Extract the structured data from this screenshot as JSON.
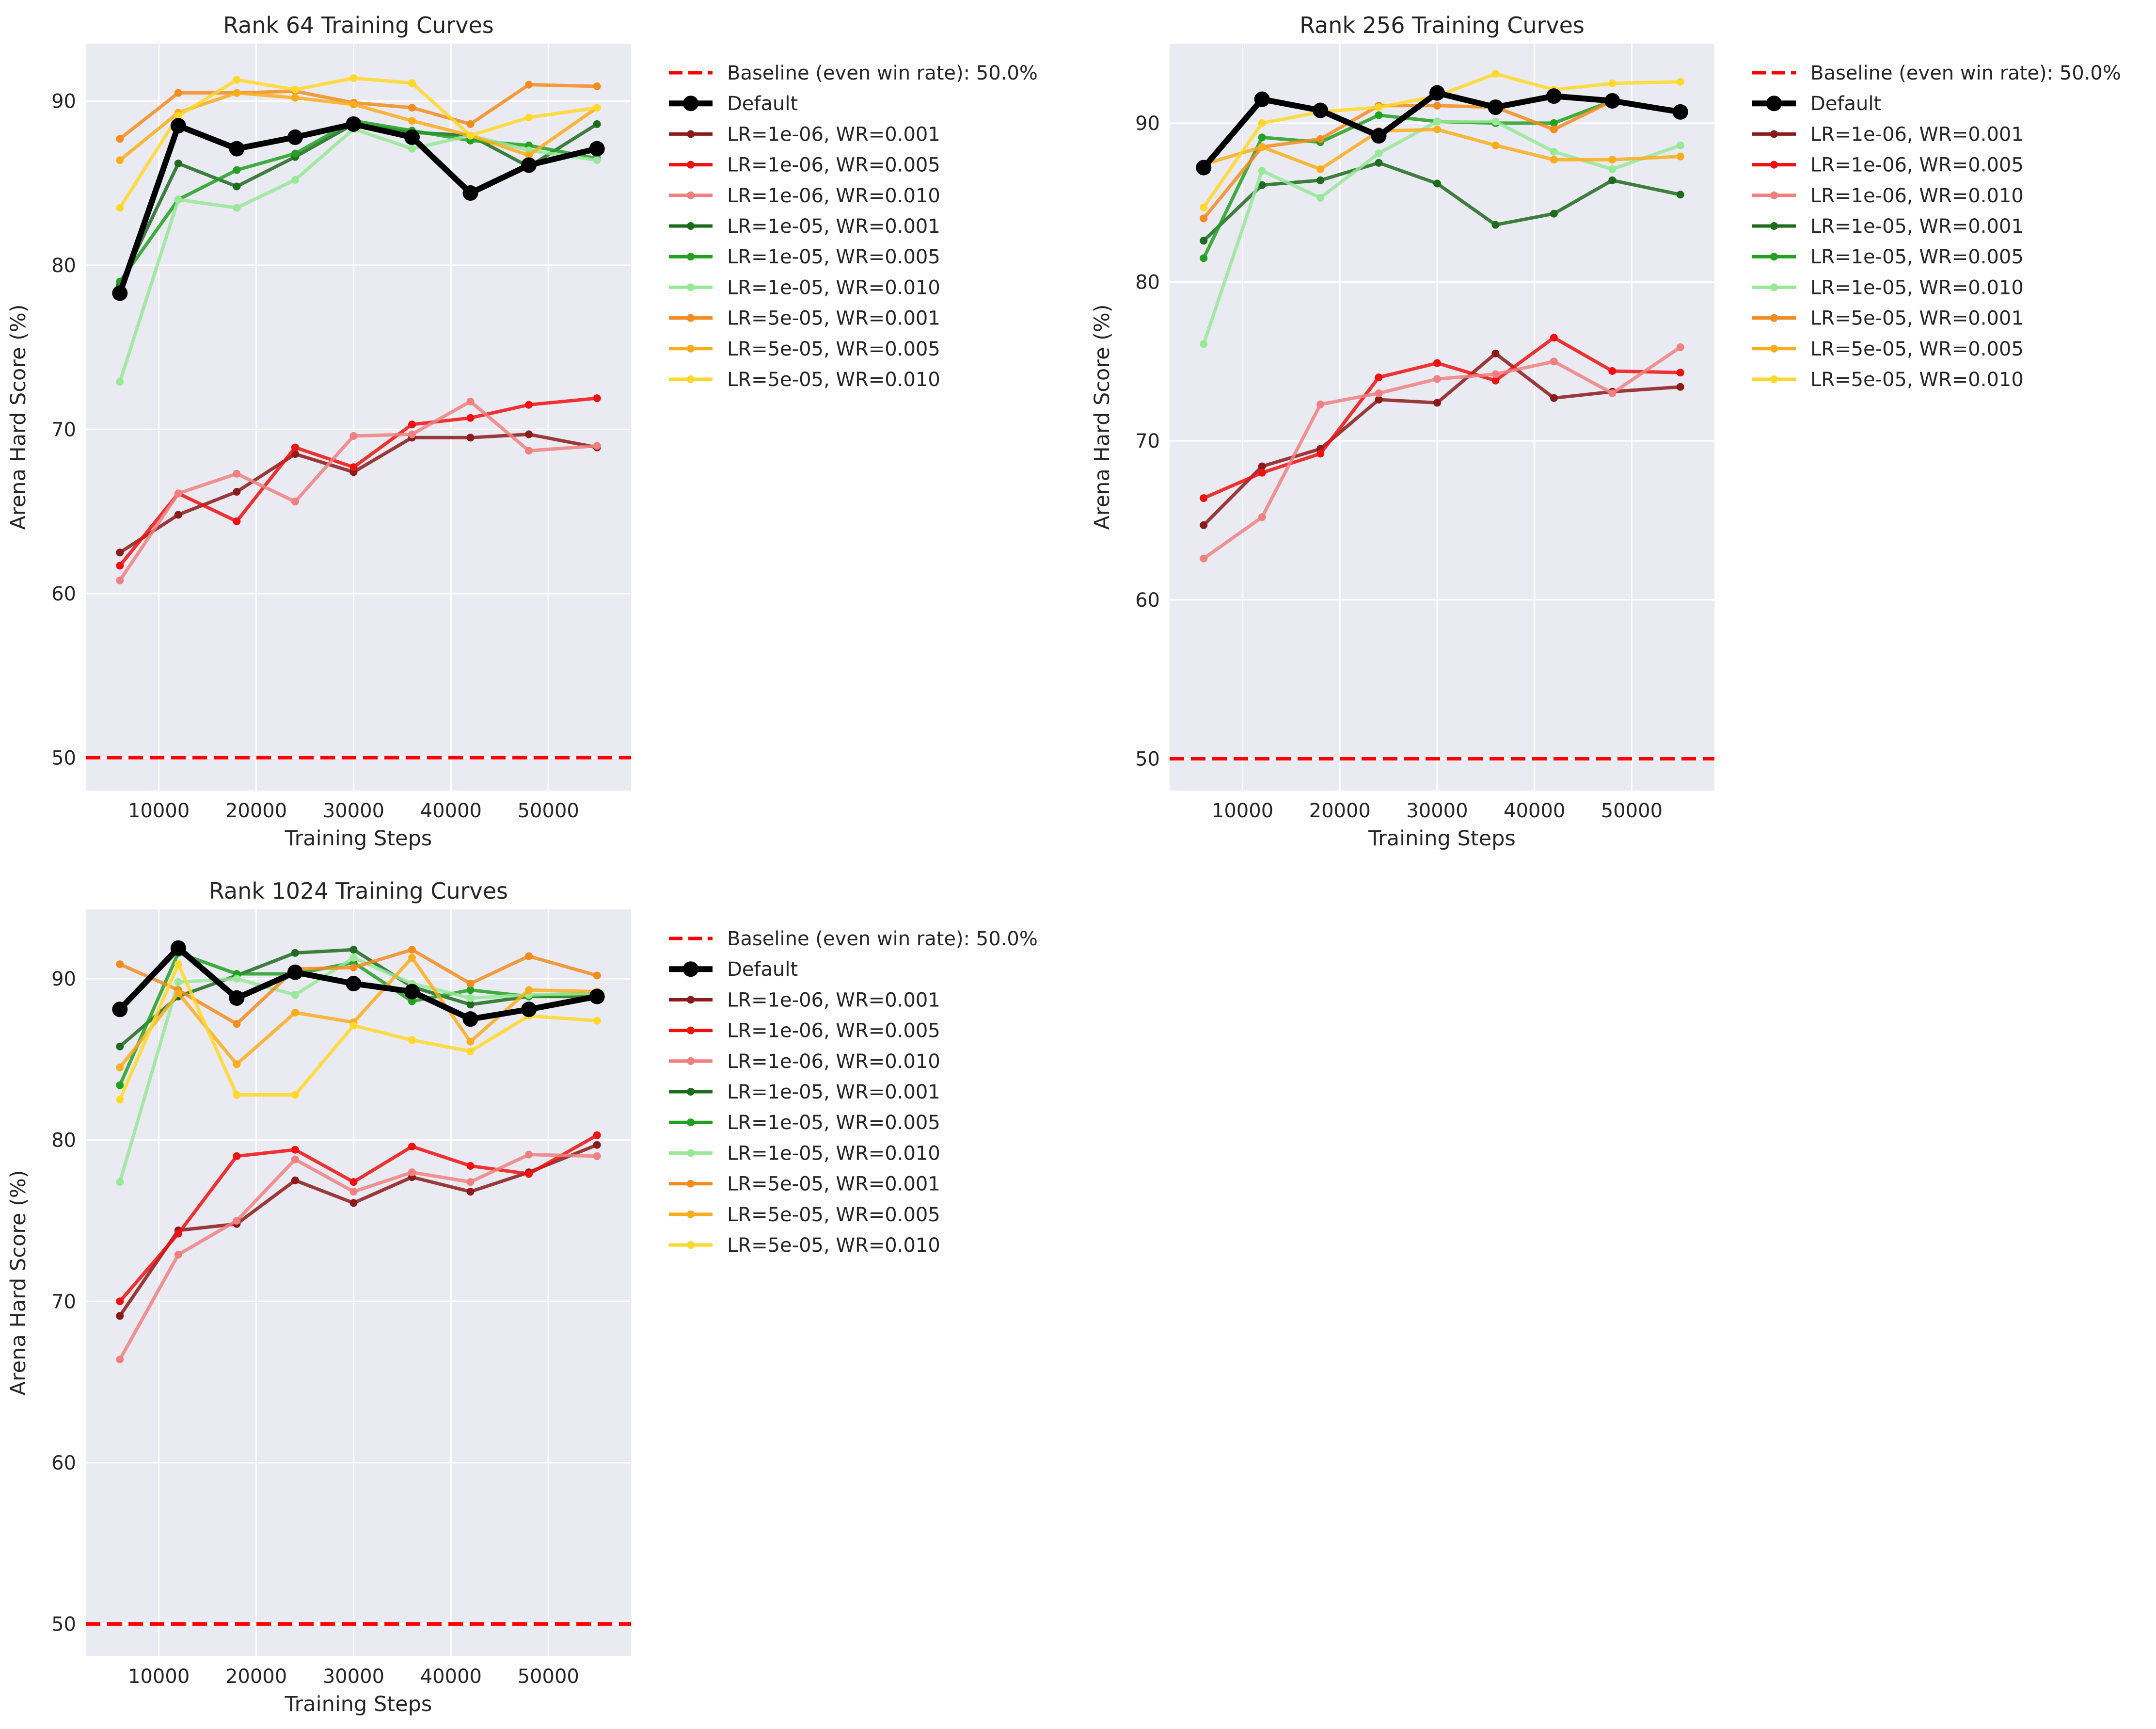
{
  "chart_data": [
    {
      "type": "line",
      "title": "Rank 64 Training Curves",
      "xlabel": "Training Steps",
      "ylabel": "Arena Hard Score (%)",
      "xlim": [
        2500,
        58500
      ],
      "ylim": [
        48,
        93.5
      ],
      "xticks": [
        10000,
        20000,
        30000,
        40000,
        50000
      ],
      "yticks": [
        50,
        60,
        70,
        80,
        90
      ],
      "grid": true,
      "legend": "outside-right",
      "baseline": {
        "name": "Baseline (even win rate): 50.0%",
        "value": 50,
        "color": "#ff0000"
      },
      "x": [
        6000,
        12000,
        18000,
        24000,
        30000,
        36000,
        42000,
        48000,
        55000
      ],
      "series": [
        {
          "name": "Default",
          "color": "#000000",
          "bold": true,
          "values": [
            78.3,
            88.5,
            87.1,
            87.8,
            88.6,
            87.8,
            84.4,
            86.1,
            87.1
          ]
        },
        {
          "name": "LR=1e-06, WR=0.001",
          "color": "#8b1a1a",
          "values": [
            62.5,
            64.8,
            66.2,
            68.5,
            67.4,
            69.5,
            69.5,
            69.7,
            68.9
          ]
        },
        {
          "name": "LR=1e-06, WR=0.005",
          "color": "#ee1111",
          "values": [
            61.7,
            66.1,
            64.4,
            68.9,
            67.7,
            70.3,
            70.7,
            71.5,
            71.9
          ]
        },
        {
          "name": "LR=1e-06, WR=0.010",
          "color": "#f08080",
          "values": [
            60.8,
            66.1,
            67.3,
            65.6,
            69.6,
            69.7,
            71.7,
            68.7,
            69.0
          ]
        },
        {
          "name": "LR=1e-05, WR=0.001",
          "color": "#1e6b1e",
          "values": [
            78.8,
            86.2,
            84.8,
            86.6,
            88.6,
            88.1,
            87.9,
            86.0,
            88.6
          ]
        },
        {
          "name": "LR=1e-05, WR=0.005",
          "color": "#22a022",
          "values": [
            79.0,
            84.0,
            85.8,
            86.8,
            88.8,
            88.2,
            87.6,
            87.3,
            86.5
          ]
        },
        {
          "name": "LR=1e-05, WR=0.010",
          "color": "#98e898",
          "values": [
            72.9,
            84.0,
            83.5,
            85.2,
            88.3,
            87.1,
            87.9,
            87.0,
            86.4
          ]
        },
        {
          "name": "LR=5e-05, WR=0.001",
          "color": "#f28c1e",
          "values": [
            87.7,
            90.5,
            90.5,
            90.6,
            89.9,
            89.6,
            88.6,
            91.0,
            90.9
          ]
        },
        {
          "name": "LR=5e-05, WR=0.005",
          "color": "#fbad1d",
          "values": [
            86.4,
            89.3,
            90.5,
            90.2,
            89.8,
            88.8,
            87.9,
            86.7,
            89.6
          ]
        },
        {
          "name": "LR=5e-05, WR=0.010",
          "color": "#ffd829",
          "values": [
            83.5,
            89.1,
            91.3,
            90.7,
            91.4,
            91.1,
            87.9,
            89.0,
            89.6
          ]
        }
      ]
    },
    {
      "type": "line",
      "title": "Rank 256 Training Curves",
      "xlabel": "Training Steps",
      "ylabel": "Arena Hard Score (%)",
      "xlim": [
        2500,
        58500
      ],
      "ylim": [
        48,
        95
      ],
      "xticks": [
        10000,
        20000,
        30000,
        40000,
        50000
      ],
      "yticks": [
        50,
        60,
        70,
        80,
        90
      ],
      "grid": true,
      "legend": "outside-right",
      "baseline": {
        "name": "Baseline (even win rate): 50.0%",
        "value": 50,
        "color": "#ff0000"
      },
      "x": [
        6000,
        12000,
        18000,
        24000,
        30000,
        36000,
        42000,
        48000,
        55000
      ],
      "series": [
        {
          "name": "Default",
          "color": "#000000",
          "bold": true,
          "values": [
            87.2,
            91.5,
            90.8,
            89.2,
            91.9,
            91.0,
            91.7,
            91.4,
            90.7
          ]
        },
        {
          "name": "LR=1e-06, WR=0.001",
          "color": "#8b1a1a",
          "values": [
            64.7,
            68.4,
            69.5,
            72.6,
            72.4,
            75.5,
            72.7,
            73.1,
            73.4
          ]
        },
        {
          "name": "LR=1e-06, WR=0.005",
          "color": "#ee1111",
          "values": [
            66.4,
            68.0,
            69.2,
            74.0,
            74.9,
            73.8,
            76.5,
            74.4,
            74.3
          ]
        },
        {
          "name": "LR=1e-06, WR=0.010",
          "color": "#f08080",
          "values": [
            62.6,
            65.2,
            72.3,
            73.0,
            73.9,
            74.2,
            75.0,
            73.0,
            75.9
          ]
        },
        {
          "name": "LR=1e-05, WR=0.001",
          "color": "#1e6b1e",
          "values": [
            82.6,
            86.1,
            86.4,
            87.5,
            86.2,
            83.6,
            84.3,
            86.4,
            85.5
          ]
        },
        {
          "name": "LR=1e-05, WR=0.005",
          "color": "#22a022",
          "values": [
            81.5,
            89.1,
            88.8,
            90.5,
            90.1,
            90.0,
            90.0,
            91.4,
            90.8
          ]
        },
        {
          "name": "LR=1e-05, WR=0.010",
          "color": "#98e898",
          "values": [
            76.1,
            87.0,
            85.3,
            88.1,
            90.1,
            90.1,
            88.2,
            87.1,
            88.6
          ]
        },
        {
          "name": "LR=5e-05, WR=0.001",
          "color": "#f28c1e",
          "values": [
            84.0,
            88.5,
            89.0,
            91.1,
            91.1,
            91.0,
            89.6,
            91.4,
            90.8
          ]
        },
        {
          "name": "LR=5e-05, WR=0.005",
          "color": "#fbad1d",
          "values": [
            87.4,
            88.5,
            87.1,
            89.5,
            89.6,
            88.6,
            87.7,
            87.7,
            87.9
          ]
        },
        {
          "name": "LR=5e-05, WR=0.010",
          "color": "#ffd829",
          "values": [
            84.7,
            90.0,
            90.7,
            91.0,
            91.7,
            93.1,
            92.1,
            92.5,
            92.6
          ]
        }
      ]
    },
    {
      "type": "line",
      "title": "Rank 1024 Training Curves",
      "xlabel": "Training Steps",
      "ylabel": "Arena Hard Score (%)",
      "xlim": [
        2500,
        58500
      ],
      "ylim": [
        48,
        94.3
      ],
      "xticks": [
        10000,
        20000,
        30000,
        40000,
        50000
      ],
      "yticks": [
        50,
        60,
        70,
        80,
        90
      ],
      "grid": true,
      "legend": "outside-right",
      "baseline": {
        "name": "Baseline (even win rate): 50.0%",
        "value": 50,
        "color": "#ff0000"
      },
      "x": [
        6000,
        12000,
        18000,
        24000,
        30000,
        36000,
        42000,
        48000,
        55000
      ],
      "series": [
        {
          "name": "Default",
          "color": "#000000",
          "bold": true,
          "values": [
            88.1,
            91.9,
            88.8,
            90.4,
            89.7,
            89.2,
            87.5,
            88.1,
            88.9
          ]
        },
        {
          "name": "LR=1e-06, WR=0.001",
          "color": "#8b1a1a",
          "values": [
            69.1,
            74.4,
            74.8,
            77.5,
            76.1,
            77.7,
            76.8,
            78.0,
            79.7
          ]
        },
        {
          "name": "LR=1e-06, WR=0.005",
          "color": "#ee1111",
          "values": [
            70.0,
            74.2,
            79.0,
            79.4,
            77.4,
            79.6,
            78.4,
            77.9,
            80.3
          ]
        },
        {
          "name": "LR=1e-06, WR=0.010",
          "color": "#f08080",
          "values": [
            66.4,
            72.9,
            75.0,
            78.8,
            76.8,
            78.0,
            77.4,
            79.1,
            79.0
          ]
        },
        {
          "name": "LR=1e-05, WR=0.001",
          "color": "#1e6b1e",
          "values": [
            85.8,
            88.9,
            90.2,
            91.6,
            91.8,
            89.5,
            88.4,
            88.9,
            88.9
          ]
        },
        {
          "name": "LR=1e-05, WR=0.005",
          "color": "#22a022",
          "values": [
            83.4,
            91.6,
            90.3,
            90.3,
            91.0,
            88.6,
            89.3,
            88.9,
            89.1
          ]
        },
        {
          "name": "LR=1e-05, WR=0.010",
          "color": "#98e898",
          "values": [
            77.4,
            89.8,
            90.0,
            89.0,
            91.3,
            89.7,
            88.8,
            89.0,
            89.1
          ]
        },
        {
          "name": "LR=5e-05, WR=0.001",
          "color": "#f28c1e",
          "values": [
            90.9,
            89.3,
            87.2,
            90.6,
            90.7,
            91.8,
            89.7,
            91.4,
            90.2
          ]
        },
        {
          "name": "LR=5e-05, WR=0.005",
          "color": "#fbad1d",
          "values": [
            84.5,
            89.1,
            84.7,
            87.9,
            87.3,
            91.3,
            86.1,
            89.3,
            89.2
          ]
        },
        {
          "name": "LR=5e-05, WR=0.010",
          "color": "#ffd829",
          "values": [
            82.5,
            90.9,
            82.8,
            82.8,
            87.1,
            86.2,
            85.5,
            87.7,
            87.4
          ]
        }
      ]
    }
  ]
}
